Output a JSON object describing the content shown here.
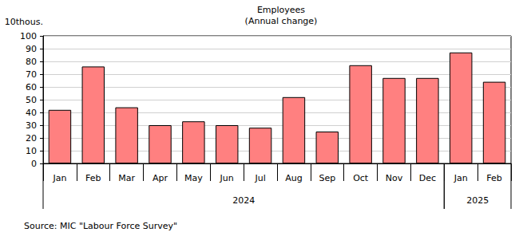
{
  "chart_data": {
    "type": "bar",
    "title": "Employees",
    "subtitle": "(Annual change)",
    "y_label": "10thous.",
    "source": "Source: MIC \"Labour Force Survey\"",
    "categories": [
      "Jan",
      "Feb",
      "Mar",
      "Apr",
      "May",
      "Jun",
      "Jul",
      "Aug",
      "Sep",
      "Oct",
      "Nov",
      "Dec",
      "Jan",
      "Feb"
    ],
    "groups": [
      "2024",
      "2024",
      "2024",
      "2024",
      "2024",
      "2024",
      "2024",
      "2024",
      "2024",
      "2024",
      "2024",
      "2024",
      "2025",
      "2025"
    ],
    "values": [
      42,
      76,
      44,
      30,
      33,
      30,
      28,
      52,
      25,
      77,
      67,
      67,
      87,
      64
    ],
    "color": "#ff8080",
    "ylim": [
      0,
      100
    ],
    "yticks": [
      0,
      10,
      20,
      30,
      40,
      50,
      60,
      70,
      80,
      90,
      100
    ],
    "grid": true
  }
}
